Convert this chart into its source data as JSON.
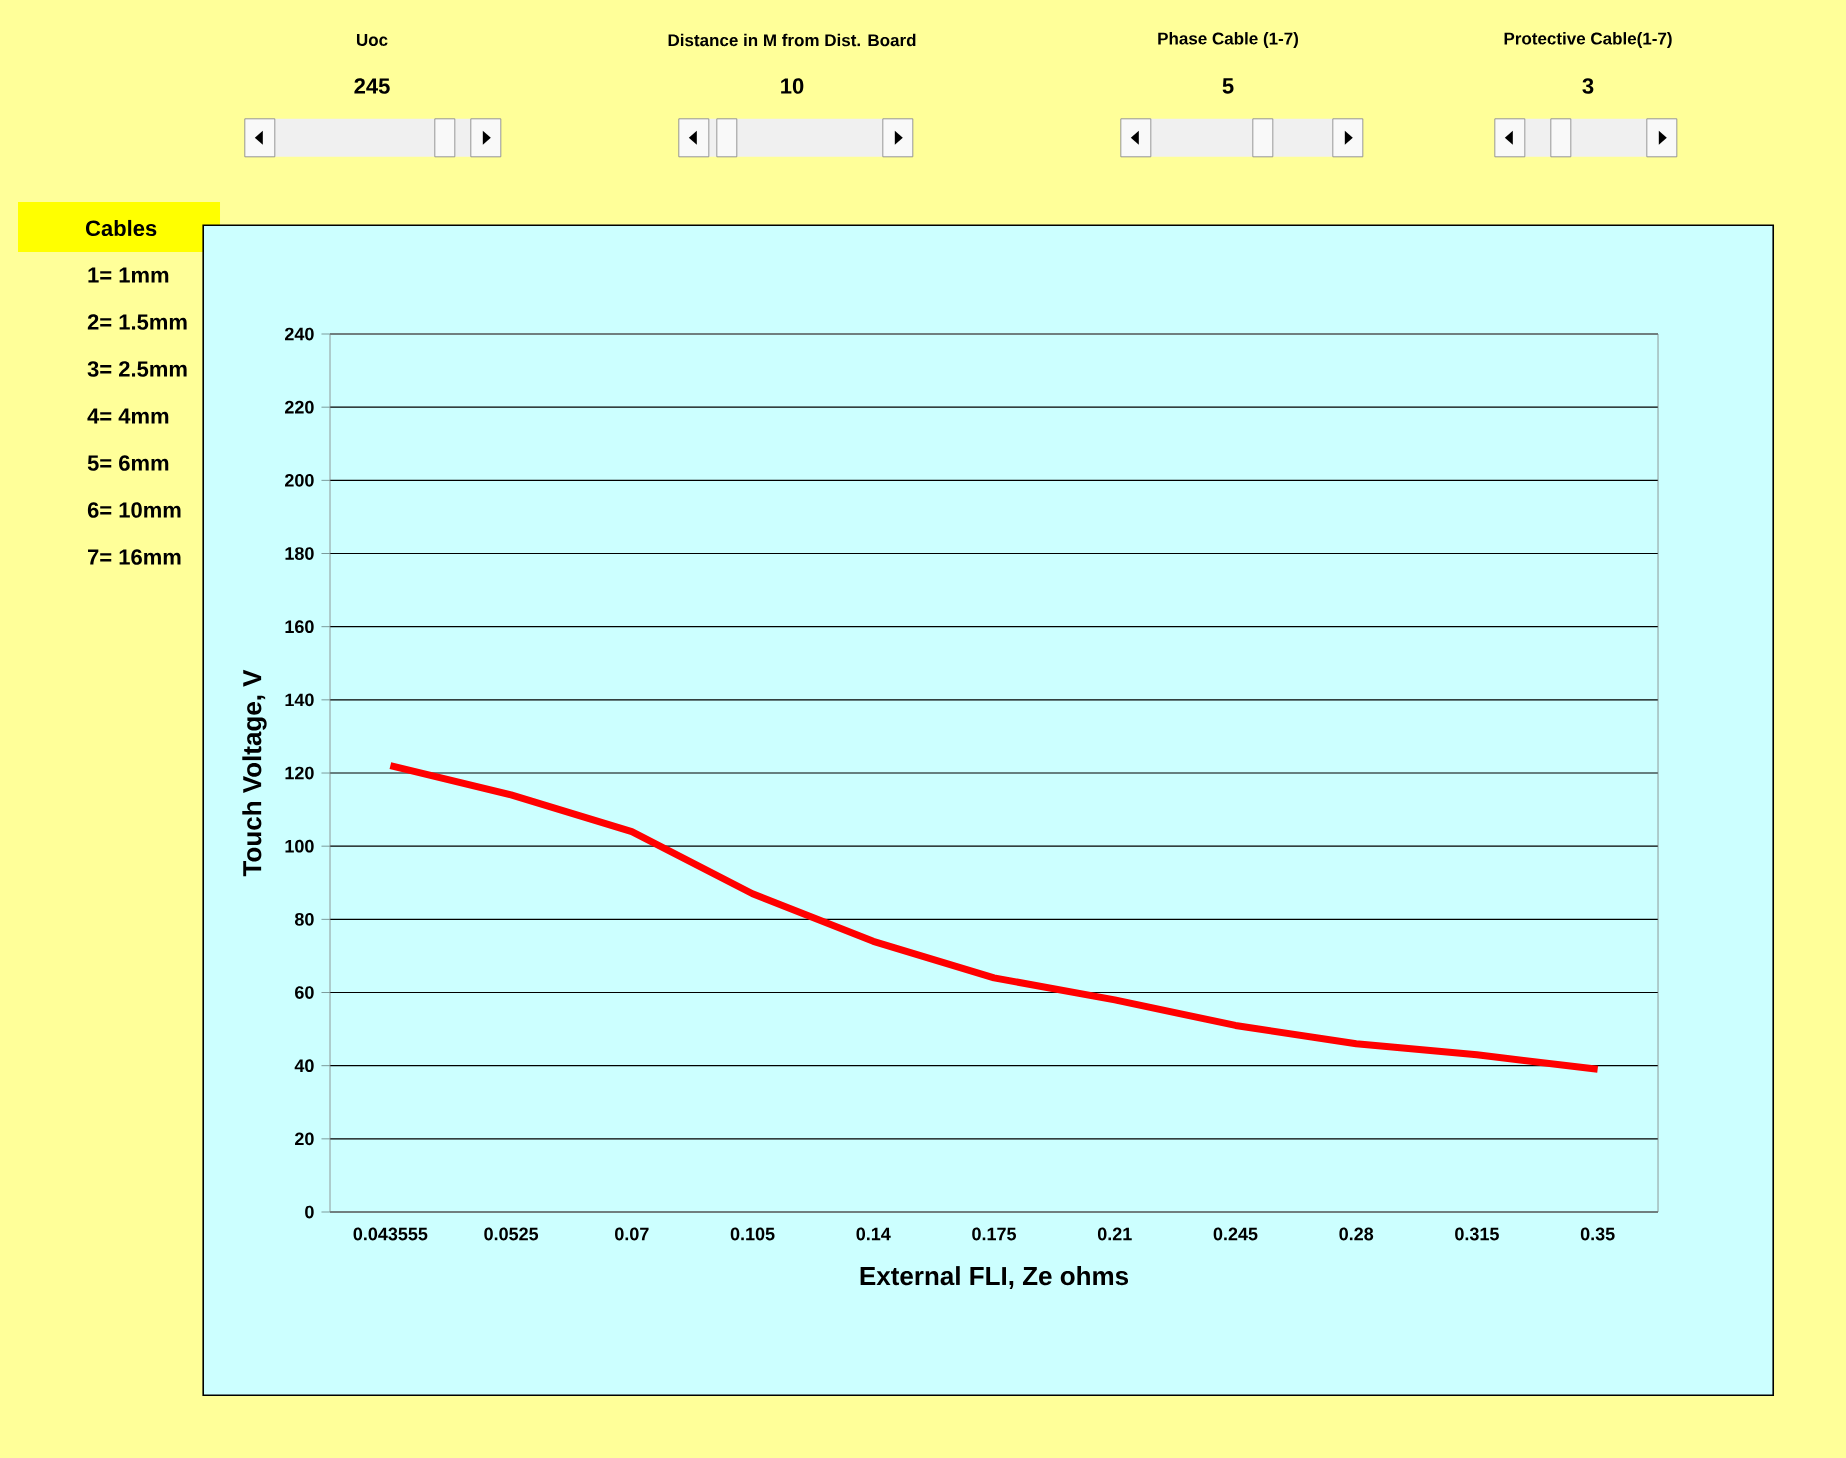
{
  "chart_data": {
    "type": "line",
    "xlabel": "External FLI, Ze ohms",
    "ylabel": "Touch Voltage, V",
    "categories": [
      "0.043555",
      "0.0525",
      "0.07",
      "0.105",
      "0.14",
      "0.175",
      "0.21",
      "0.245",
      "0.28",
      "0.315",
      "0.35"
    ],
    "series": [
      {
        "color": "#ff0000",
        "values": [
          122,
          114,
          104,
          87,
          74,
          64,
          58,
          51,
          46,
          43,
          39
        ]
      }
    ],
    "ylim": [
      0,
      240
    ],
    "yticks": [
      0,
      20,
      40,
      60,
      80,
      100,
      120,
      140,
      160,
      180,
      200,
      220,
      240
    ],
    "grid": "y",
    "marker": "none",
    "line_style": "solid",
    "annotations": [
      "Uoc",
      "245",
      "Distance in M from Dist. Board",
      "10",
      "Phase Cable (1-7)",
      "5",
      "Protective Cable(1-7)",
      "3",
      "Cables",
      "1= 1mm",
      "2= 1.5mm",
      "3= 2.5mm",
      "4= 4mm",
      "5= 6mm",
      "6= 10mm",
      "7= 16mm"
    ]
  }
}
